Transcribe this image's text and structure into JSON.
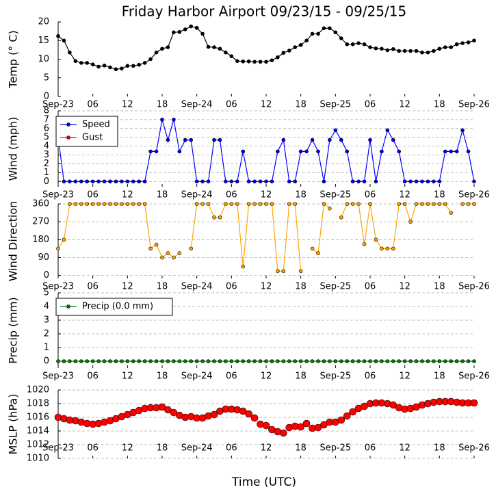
{
  "chart_data": [
    {
      "type": "line",
      "title": "Friday Harbor Airport 09/23/15 - 09/25/15",
      "ylabel": "Temp (° C)",
      "x": [
        0,
        1,
        2,
        3,
        4,
        5,
        6,
        7,
        8,
        9,
        10,
        11,
        12,
        13,
        14,
        15,
        16,
        17,
        18,
        19,
        20,
        21,
        22,
        23,
        24,
        25,
        26,
        27,
        28,
        29,
        30,
        31,
        32,
        33,
        34,
        35,
        36,
        37,
        38,
        39,
        40,
        41,
        42,
        43,
        44,
        45,
        46,
        47,
        48,
        49,
        50,
        51,
        52,
        53,
        54,
        55,
        56,
        57,
        58,
        59,
        60,
        61,
        62,
        63,
        64,
        65,
        66,
        67,
        68,
        69,
        70,
        71,
        72
      ],
      "series": [
        {
          "name": "Temp",
          "color": "#000000",
          "values": [
            16.2,
            15,
            11.8,
            9.5,
            9,
            9,
            8.6,
            8,
            8.3,
            7.8,
            7.3,
            7.5,
            8.2,
            8.2,
            8.5,
            9,
            10,
            11.8,
            12.8,
            13.2,
            17.2,
            17.3,
            18,
            18.8,
            18.4,
            16.8,
            13.3,
            13.2,
            12.8,
            11.8,
            10.8,
            9.5,
            9.4,
            9.4,
            9.3,
            9.3,
            9.3,
            9.7,
            10.5,
            11.7,
            12.3,
            13.2,
            13.8,
            15,
            16.8,
            16.8,
            18.3,
            18.3,
            17.2,
            15.6,
            14,
            14,
            14.3,
            14,
            13.2,
            12.9,
            12.8,
            12.4,
            12.7,
            12.2,
            12.2,
            12.2,
            12.2,
            11.8,
            11.8,
            12.2,
            12.8,
            13.2,
            13.2,
            14,
            14.3,
            14.5,
            15
          ]
        }
      ],
      "xlim": [
        0,
        72
      ],
      "xticks": [
        {
          "value": 0,
          "label": "Sep-23"
        },
        {
          "value": 6,
          "label": "06"
        },
        {
          "value": 12,
          "label": "12"
        },
        {
          "value": 18,
          "label": "18"
        },
        {
          "value": 24,
          "label": "Sep-24"
        },
        {
          "value": 30,
          "label": "06"
        },
        {
          "value": 36,
          "label": "12"
        },
        {
          "value": 42,
          "label": "18"
        },
        {
          "value": 48,
          "label": "Sep-25"
        },
        {
          "value": 54,
          "label": "06"
        },
        {
          "value": 60,
          "label": "12"
        },
        {
          "value": 66,
          "label": "18"
        },
        {
          "value": 72,
          "label": "Sep-26"
        }
      ],
      "ylim": [
        0,
        20
      ],
      "yticks": [
        0,
        5,
        10,
        15,
        20
      ],
      "grid": false
    },
    {
      "type": "line",
      "ylabel": "Wind (mph)",
      "x": [
        0,
        1,
        2,
        3,
        4,
        5,
        6,
        7,
        8,
        9,
        10,
        11,
        12,
        13,
        14,
        15,
        16,
        17,
        18,
        19,
        20,
        21,
        22,
        23,
        24,
        25,
        26,
        27,
        28,
        29,
        30,
        31,
        32,
        33,
        34,
        35,
        36,
        37,
        38,
        39,
        40,
        41,
        42,
        43,
        44,
        45,
        46,
        47,
        48,
        49,
        50,
        51,
        52,
        53,
        54,
        55,
        56,
        57,
        58,
        59,
        60,
        61,
        62,
        63,
        64,
        65,
        66,
        67,
        68,
        69,
        70,
        71,
        72
      ],
      "series": [
        {
          "name": "Speed",
          "color": "#0000ff",
          "values": [
            5,
            0,
            0,
            0,
            0,
            0,
            0,
            0,
            0,
            0,
            0,
            0,
            0,
            0,
            0,
            0,
            3.4,
            3.4,
            7,
            4.7,
            7,
            3.4,
            4.7,
            4.7,
            0,
            0,
            0,
            4.7,
            4.7,
            0,
            0,
            0,
            3.4,
            0,
            0,
            0,
            0,
            0,
            3.4,
            4.7,
            0,
            0,
            3.4,
            3.4,
            4.7,
            3.4,
            0,
            4.7,
            5.8,
            4.7,
            3.4,
            0,
            0,
            0,
            4.7,
            0,
            3.4,
            5.8,
            4.7,
            3.4,
            0,
            0,
            0,
            0,
            0,
            0,
            0,
            3.4,
            3.4,
            3.4,
            5.8,
            3.4,
            0
          ]
        },
        {
          "name": "Gust",
          "color": "#ff0000",
          "values": [
            null,
            null,
            null,
            null,
            null,
            null,
            null,
            null,
            null,
            null,
            null,
            null,
            null,
            null,
            null,
            null,
            null,
            null,
            null,
            null,
            null,
            null,
            null,
            null,
            null,
            null,
            null,
            null,
            null,
            null,
            null,
            null,
            null,
            null,
            null,
            null,
            null,
            null,
            null,
            null,
            null,
            null,
            null,
            null,
            null,
            null,
            null,
            null,
            null,
            null,
            null,
            null,
            null,
            null,
            null,
            null,
            null,
            null,
            null,
            null,
            null,
            null,
            null,
            null,
            null,
            null,
            null,
            null,
            null,
            null,
            null,
            null,
            null
          ]
        }
      ],
      "xlim": [
        0,
        72
      ],
      "xticks": [
        {
          "value": 0,
          "label": "Sep-23"
        },
        {
          "value": 6,
          "label": "06"
        },
        {
          "value": 12,
          "label": "12"
        },
        {
          "value": 18,
          "label": "18"
        },
        {
          "value": 24,
          "label": "Sep-24"
        },
        {
          "value": 30,
          "label": "06"
        },
        {
          "value": 36,
          "label": "12"
        },
        {
          "value": 42,
          "label": "18"
        },
        {
          "value": 48,
          "label": "Sep-25"
        },
        {
          "value": 54,
          "label": "06"
        },
        {
          "value": 60,
          "label": "12"
        },
        {
          "value": 66,
          "label": "18"
        },
        {
          "value": 72,
          "label": "Sep-26"
        }
      ],
      "ylim": [
        -0.6,
        8
      ],
      "yticks": [
        0,
        1,
        2,
        3,
        4,
        5,
        6,
        7,
        8
      ],
      "grid": true,
      "legend": "upper left"
    },
    {
      "type": "line",
      "ylabel": "Wind Direction",
      "x": [
        0,
        1,
        2,
        3,
        4,
        5,
        6,
        7,
        8,
        9,
        10,
        11,
        12,
        13,
        14,
        15,
        16,
        17,
        18,
        19,
        20,
        21,
        22,
        23,
        24,
        25,
        26,
        27,
        28,
        29,
        30,
        31,
        32,
        33,
        34,
        35,
        36,
        37,
        38,
        39,
        40,
        41,
        42,
        43,
        44,
        45,
        46,
        47,
        48,
        49,
        50,
        51,
        52,
        53,
        54,
        55,
        56,
        57,
        58,
        59,
        60,
        61,
        62,
        63,
        64,
        65,
        66,
        67,
        68,
        69,
        70,
        71,
        72
      ],
      "series": [
        {
          "name": "Direction",
          "color": "#ffa500",
          "values": [
            135,
            180,
            360,
            360,
            360,
            360,
            360,
            360,
            360,
            360,
            360,
            360,
            360,
            360,
            360,
            360,
            135,
            155,
            90,
            112,
            90,
            112,
            null,
            135,
            360,
            360,
            360,
            292,
            292,
            360,
            360,
            360,
            45,
            360,
            360,
            360,
            360,
            360,
            22,
            22,
            360,
            360,
            22,
            null,
            135,
            112,
            360,
            337,
            null,
            292,
            360,
            360,
            360,
            157,
            360,
            180,
            135,
            135,
            135,
            360,
            360,
            270,
            360,
            360,
            360,
            360,
            360,
            360,
            315,
            null,
            360,
            360,
            360
          ]
        }
      ],
      "xlim": [
        0,
        72
      ],
      "xticks": [
        {
          "value": 0,
          "label": "Sep-23"
        },
        {
          "value": 6,
          "label": "06"
        },
        {
          "value": 12,
          "label": "12"
        },
        {
          "value": 18,
          "label": "18"
        },
        {
          "value": 24,
          "label": "Sep-24"
        },
        {
          "value": 30,
          "label": "06"
        },
        {
          "value": 36,
          "label": "12"
        },
        {
          "value": 42,
          "label": "18"
        },
        {
          "value": 48,
          "label": "Sep-25"
        },
        {
          "value": 54,
          "label": "06"
        },
        {
          "value": 60,
          "label": "12"
        },
        {
          "value": 66,
          "label": "18"
        },
        {
          "value": 72,
          "label": "Sep-26"
        }
      ],
      "ylim": [
        -15,
        360
      ],
      "yticks": [
        0,
        90,
        180,
        270,
        360
      ],
      "grid": true
    },
    {
      "type": "line",
      "ylabel": "Precip (mm)",
      "x": [
        0,
        1,
        2,
        3,
        4,
        5,
        6,
        7,
        8,
        9,
        10,
        11,
        12,
        13,
        14,
        15,
        16,
        17,
        18,
        19,
        20,
        21,
        22,
        23,
        24,
        25,
        26,
        27,
        28,
        29,
        30,
        31,
        32,
        33,
        34,
        35,
        36,
        37,
        38,
        39,
        40,
        41,
        42,
        43,
        44,
        45,
        46,
        47,
        48,
        49,
        50,
        51,
        52,
        53,
        54,
        55,
        56,
        57,
        58,
        59,
        60,
        61,
        62,
        63,
        64,
        65,
        66,
        67,
        68,
        69,
        70,
        71,
        72
      ],
      "series": [
        {
          "name": "Precip (0.0 mm)",
          "color": "#008000",
          "values": [
            0,
            0,
            0,
            0,
            0,
            0,
            0,
            0,
            0,
            0,
            0,
            0,
            0,
            0,
            0,
            0,
            0,
            0,
            0,
            0,
            0,
            0,
            0,
            0,
            0,
            0,
            0,
            0,
            0,
            0,
            0,
            0,
            0,
            0,
            0,
            0,
            0,
            0,
            0,
            0,
            0,
            0,
            0,
            0,
            0,
            0,
            0,
            0,
            0,
            0,
            0,
            0,
            0,
            0,
            0,
            0,
            0,
            0,
            0,
            0,
            0,
            0,
            0,
            0,
            0,
            0,
            0,
            0,
            0,
            0,
            0,
            0,
            0
          ]
        }
      ],
      "xlim": [
        0,
        72
      ],
      "xticks": [
        {
          "value": 0,
          "label": "Sep-23"
        },
        {
          "value": 6,
          "label": "06"
        },
        {
          "value": 12,
          "label": "12"
        },
        {
          "value": 18,
          "label": "18"
        },
        {
          "value": 24,
          "label": "Sep-24"
        },
        {
          "value": 30,
          "label": "06"
        },
        {
          "value": 36,
          "label": "12"
        },
        {
          "value": 42,
          "label": "18"
        },
        {
          "value": 48,
          "label": "Sep-25"
        },
        {
          "value": 54,
          "label": "06"
        },
        {
          "value": 60,
          "label": "12"
        },
        {
          "value": 66,
          "label": "18"
        },
        {
          "value": 72,
          "label": "Sep-26"
        }
      ],
      "ylim": [
        -0.5,
        5
      ],
      "yticks": [
        0,
        1,
        2,
        3,
        4,
        5
      ],
      "grid": true,
      "legend": "upper left"
    },
    {
      "type": "scatter",
      "ylabel": "MSLP (hPa)",
      "xlabel": "Time (UTC)",
      "x": [
        0,
        1,
        2,
        3,
        4,
        5,
        6,
        7,
        8,
        9,
        10,
        11,
        12,
        13,
        14,
        15,
        16,
        17,
        18,
        19,
        20,
        21,
        22,
        23,
        24,
        25,
        26,
        27,
        28,
        29,
        30,
        31,
        32,
        33,
        34,
        35,
        36,
        37,
        38,
        39,
        40,
        41,
        42,
        43,
        44,
        45,
        46,
        47,
        48,
        49,
        50,
        51,
        52,
        53,
        54,
        55,
        56,
        57,
        58,
        59,
        60,
        61,
        62,
        63,
        64,
        65,
        66,
        67,
        68,
        69,
        70,
        71,
        72
      ],
      "series": [
        {
          "name": "MSLP",
          "color": "#ff0000",
          "values": [
            1016,
            1015.8,
            1015.6,
            1015.5,
            1015.3,
            1015.1,
            1015,
            1015.1,
            1015.3,
            1015.5,
            1015.8,
            1016.1,
            1016.4,
            1016.7,
            1017,
            1017.3,
            1017.4,
            1017.4,
            1017.5,
            1017.1,
            1016.7,
            1016.3,
            1016,
            1016.1,
            1015.9,
            1015.9,
            1016.2,
            1016.4,
            1016.9,
            1017.2,
            1017.2,
            1017.1,
            1016.9,
            1016.5,
            1015.9,
            1015,
            1014.8,
            1014.2,
            1013.9,
            1013.7,
            1014.5,
            1014.7,
            1014.6,
            1015.1,
            1014.4,
            1014.5,
            1014.9,
            1015.3,
            1015.3,
            1015.6,
            1016.2,
            1016.8,
            1017.3,
            1017.6,
            1018,
            1018.1,
            1018.1,
            1018,
            1017.8,
            1017.4,
            1017.2,
            1017.3,
            1017.5,
            1017.8,
            1018,
            1018.2,
            1018.3,
            1018.3,
            1018.3,
            1018.2,
            1018.1,
            1018.1,
            1018.1
          ]
        }
      ],
      "xlim": [
        0,
        72
      ],
      "xticks": [
        {
          "value": 0,
          "label": "Sep-23"
        },
        {
          "value": 6,
          "label": "06"
        },
        {
          "value": 12,
          "label": "12"
        },
        {
          "value": 18,
          "label": "18"
        },
        {
          "value": 24,
          "label": "Sep-24"
        },
        {
          "value": 30,
          "label": "06"
        },
        {
          "value": 36,
          "label": "12"
        },
        {
          "value": 42,
          "label": "18"
        },
        {
          "value": 48,
          "label": "Sep-25"
        },
        {
          "value": 54,
          "label": "06"
        },
        {
          "value": 60,
          "label": "12"
        },
        {
          "value": 66,
          "label": "18"
        },
        {
          "value": 72,
          "label": "Sep-26"
        }
      ],
      "ylim": [
        1010,
        1020
      ],
      "yticks": [
        1010,
        1012,
        1014,
        1016,
        1018,
        1020
      ],
      "grid": true
    }
  ]
}
